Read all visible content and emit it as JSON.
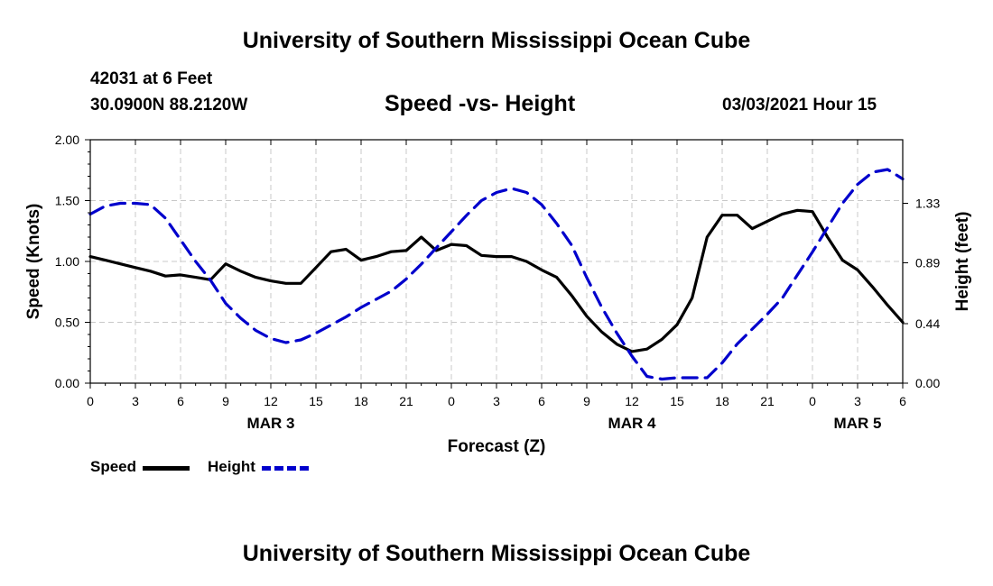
{
  "header": {
    "title": "University of Southern Mississippi Ocean Cube",
    "station": "42031 at 6 Feet",
    "coords": "30.0900N 88.2120W",
    "plot_title": "Speed -vs- Height",
    "run_time": "03/03/2021 Hour 15"
  },
  "footer": {
    "title": "University of Southern Mississippi Ocean Cube"
  },
  "legend": [
    {
      "label": "Speed",
      "color": "#000000",
      "style": "solid"
    },
    {
      "label": "Height",
      "color": "#0000cc",
      "style": "dashed"
    }
  ],
  "chart_data": {
    "type": "line",
    "title": "Speed -vs- Height",
    "xlabel": "Forecast (Z)",
    "ylabel": "Speed (Knots)",
    "y2label": "Height (feet)",
    "xlim": [
      0,
      54
    ],
    "ylim": [
      0,
      2.0
    ],
    "y2lim": [
      0,
      1.8
    ],
    "grid": true,
    "x_ticks": [
      0,
      3,
      6,
      9,
      12,
      15,
      18,
      21,
      24,
      27,
      30,
      33,
      36,
      39,
      42,
      45,
      48,
      51,
      54
    ],
    "x_tick_labels": [
      "0",
      "3",
      "6",
      "9",
      "12",
      "15",
      "18",
      "21",
      "0",
      "3",
      "6",
      "9",
      "12",
      "15",
      "18",
      "21",
      "0",
      "3",
      "6"
    ],
    "y_ticks": [
      0,
      0.5,
      1.0,
      1.5,
      2.0
    ],
    "y_tick_labels": [
      "0.00",
      "0.50",
      "1.00",
      "1.50",
      "2.00"
    ],
    "y2_ticks": [
      0.0,
      0.44,
      0.89,
      1.33
    ],
    "y2_tick_labels": [
      "0.00",
      "0.44",
      "0.89",
      "1.33"
    ],
    "date_labels": [
      {
        "x": 12,
        "label": "MAR 3"
      },
      {
        "x": 36,
        "label": "MAR 4"
      },
      {
        "x": 51,
        "label": "MAR 5"
      }
    ],
    "series": [
      {
        "name": "Speed",
        "axis": "left",
        "x": [
          0,
          1,
          2,
          3,
          4,
          5,
          6,
          7,
          8,
          9,
          10,
          11,
          12,
          13,
          14,
          15,
          16,
          17,
          18,
          19,
          20,
          21,
          22,
          23,
          24,
          25,
          26,
          27,
          28,
          29,
          30,
          31,
          32,
          33,
          34,
          35,
          36,
          37,
          38,
          39,
          40,
          41,
          42,
          43,
          44,
          45,
          46,
          47,
          48,
          49,
          50,
          51,
          52,
          53,
          54
        ],
        "values": [
          1.04,
          1.01,
          0.98,
          0.95,
          0.92,
          0.88,
          0.89,
          0.87,
          0.85,
          0.98,
          0.92,
          0.87,
          0.84,
          0.82,
          0.82,
          0.95,
          1.08,
          1.1,
          1.01,
          1.04,
          1.08,
          1.09,
          1.2,
          1.09,
          1.14,
          1.13,
          1.05,
          1.04,
          1.04,
          1.0,
          0.93,
          0.87,
          0.72,
          0.55,
          0.42,
          0.32,
          0.26,
          0.28,
          0.36,
          0.48,
          0.7,
          1.2,
          1.38,
          1.38,
          1.27,
          1.33,
          1.39,
          1.42,
          1.41,
          1.2,
          1.01,
          0.93,
          0.79,
          0.64,
          0.5
        ]
      },
      {
        "name": "Height",
        "axis": "right",
        "x": [
          0,
          1,
          2,
          3,
          4,
          5,
          6,
          7,
          8,
          9,
          10,
          11,
          12,
          13,
          14,
          15,
          16,
          17,
          18,
          19,
          20,
          21,
          22,
          23,
          24,
          25,
          26,
          27,
          28,
          29,
          30,
          31,
          32,
          33,
          34,
          35,
          36,
          37,
          38,
          39,
          40,
          41,
          42,
          43,
          44,
          45,
          46,
          47,
          48,
          49,
          50,
          51,
          52,
          53,
          54
        ],
        "values": [
          1.25,
          1.31,
          1.33,
          1.33,
          1.32,
          1.22,
          1.06,
          0.9,
          0.76,
          0.59,
          0.48,
          0.39,
          0.33,
          0.3,
          0.32,
          0.37,
          0.43,
          0.49,
          0.56,
          0.62,
          0.68,
          0.77,
          0.88,
          1.0,
          1.12,
          1.24,
          1.35,
          1.41,
          1.44,
          1.41,
          1.32,
          1.18,
          1.02,
          0.78,
          0.56,
          0.37,
          0.2,
          0.05,
          0.03,
          0.04,
          0.04,
          0.04,
          0.15,
          0.29,
          0.4,
          0.51,
          0.63,
          0.8,
          0.97,
          1.15,
          1.33,
          1.47,
          1.56,
          1.58,
          1.51
        ]
      }
    ]
  }
}
